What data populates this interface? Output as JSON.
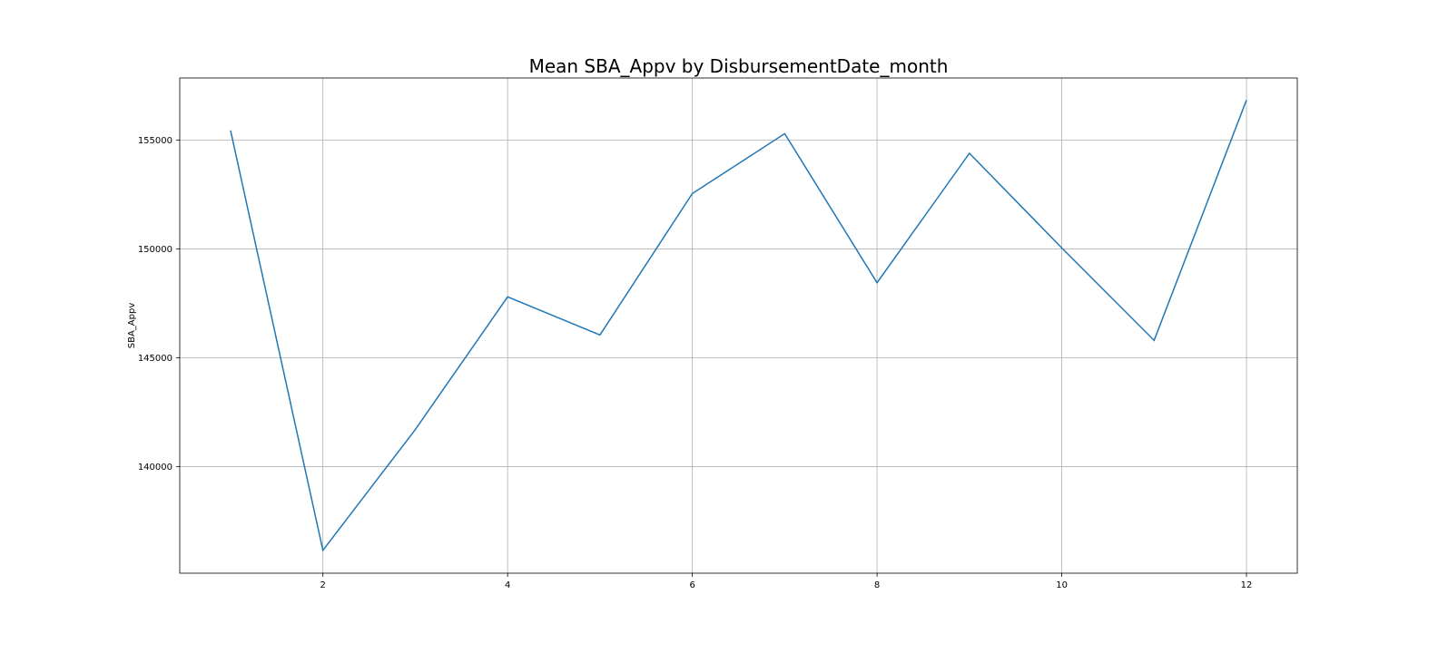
{
  "chart_data": {
    "type": "line",
    "title": "Mean SBA_Appv by DisbursementDate_month",
    "xlabel": "",
    "ylabel": "SBA_Appv",
    "x": [
      1,
      2,
      3,
      4,
      5,
      6,
      7,
      8,
      9,
      10,
      11,
      12
    ],
    "series": [
      {
        "values": [
          155450,
          136150,
          141700,
          147800,
          146050,
          152550,
          155300,
          148450,
          154400,
          150050,
          145800,
          156850
        ]
      }
    ],
    "xlim": [
      0.45,
      12.55
    ],
    "ylim": [
      135100,
      157860
    ],
    "xticks": [
      2,
      4,
      6,
      8,
      10,
      12
    ],
    "yticks": [
      140000,
      145000,
      150000,
      155000
    ],
    "xtick_labels": [
      "2",
      "4",
      "6",
      "8",
      "10",
      "12"
    ],
    "ytick_labels": [
      "140000",
      "145000",
      "150000",
      "155000"
    ],
    "grid": true,
    "line_color": "#1f77b4"
  }
}
